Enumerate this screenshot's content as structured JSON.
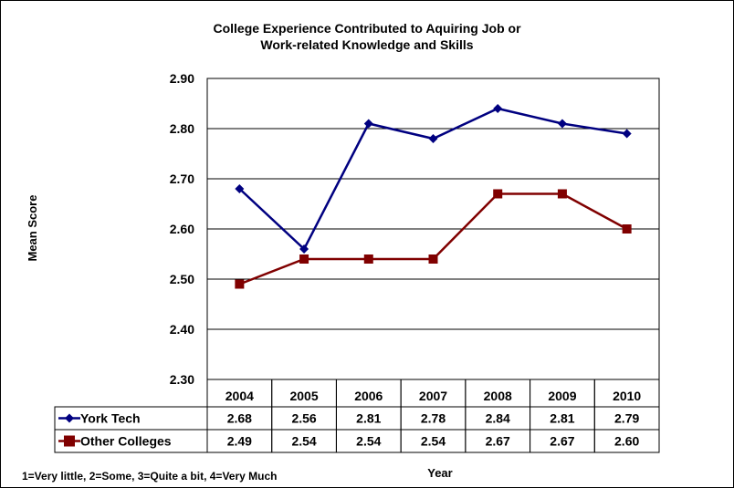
{
  "chart_data": {
    "type": "line",
    "title_lines": [
      "College Experience Contributed to Aquiring Job or",
      "Work-related Knowledge and Skills"
    ],
    "xlabel": "Year",
    "ylabel": "Mean Score",
    "footnote": "1=Very little, 2=Some, 3=Quite a bit, 4=Very Much",
    "categories": [
      "2004",
      "2005",
      "2006",
      "2007",
      "2008",
      "2009",
      "2010"
    ],
    "ylim": [
      2.3,
      2.9
    ],
    "ytick_step": 0.1,
    "yticks": [
      "2.30",
      "2.40",
      "2.50",
      "2.60",
      "2.70",
      "2.80",
      "2.90"
    ],
    "grid": true,
    "legend": "data-table",
    "series": [
      {
        "name": "York Tech",
        "values": [
          2.68,
          2.56,
          2.81,
          2.78,
          2.84,
          2.81,
          2.79
        ],
        "labels": [
          "2.68",
          "2.56",
          "2.81",
          "2.78",
          "2.84",
          "2.81",
          "2.79"
        ],
        "color": "#000080",
        "marker": "diamond"
      },
      {
        "name": "Other Colleges",
        "values": [
          2.49,
          2.54,
          2.54,
          2.54,
          2.67,
          2.67,
          2.6
        ],
        "labels": [
          "2.49",
          "2.54",
          "2.54",
          "2.54",
          "2.67",
          "2.67",
          "2.60"
        ],
        "color": "#800000",
        "marker": "square"
      }
    ]
  }
}
